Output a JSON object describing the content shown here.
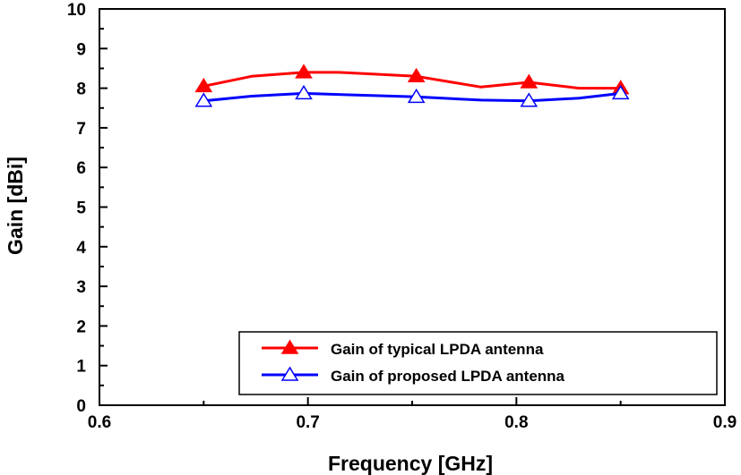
{
  "chart_data": {
    "type": "line",
    "title": "",
    "xlabel": "Frequency [GHz]",
    "ylabel": "Gain [dBi]",
    "xlim": [
      0.6,
      0.9
    ],
    "ylim": [
      0,
      10
    ],
    "xticks": [
      "0.6",
      "0.7",
      "0.8",
      "0.9"
    ],
    "yticks": [
      "0",
      "1",
      "2",
      "3",
      "4",
      "5",
      "6",
      "7",
      "8",
      "9",
      "10"
    ],
    "grid": false,
    "legend_position": "bottom-right",
    "series": [
      {
        "name": "Gain of typical LPDA antenna",
        "color": "#ff0000",
        "marker": "filled-triangle",
        "x": [
          0.65,
          0.673,
          0.698,
          0.715,
          0.752,
          0.783,
          0.806,
          0.83,
          0.85
        ],
        "y": [
          8.05,
          8.3,
          8.4,
          8.4,
          8.3,
          8.03,
          8.15,
          8.0,
          8.0
        ],
        "marker_x": [
          0.65,
          0.698,
          0.752,
          0.806,
          0.85
        ],
        "marker_y": [
          8.05,
          8.4,
          8.3,
          8.15,
          8.0
        ]
      },
      {
        "name": "Gain of proposed LPDA antenna",
        "color": "#0000ff",
        "marker": "open-triangle",
        "x": [
          0.65,
          0.673,
          0.698,
          0.752,
          0.783,
          0.806,
          0.83,
          0.85
        ],
        "y": [
          7.68,
          7.8,
          7.87,
          7.78,
          7.7,
          7.68,
          7.75,
          7.87
        ],
        "marker_x": [
          0.65,
          0.698,
          0.752,
          0.806,
          0.85
        ],
        "marker_y": [
          7.68,
          7.87,
          7.78,
          7.68,
          7.87
        ]
      }
    ]
  }
}
